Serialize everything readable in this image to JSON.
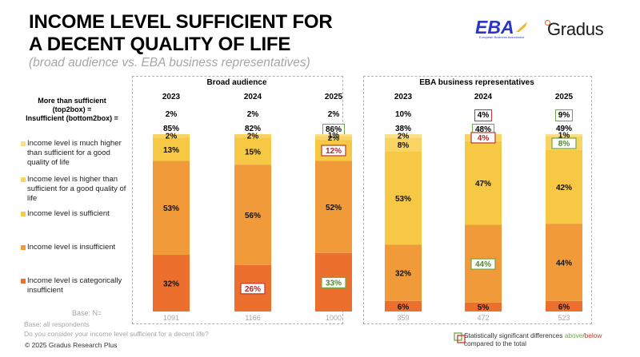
{
  "header": {
    "title_line1": "INCOME LEVEL SUFFICIENT FOR",
    "title_line2": "A DECENT QUALITY OF LIFE",
    "subtitle": "(broad audience vs. EBA business representatives)",
    "logo_eba": "EBA",
    "logo_eba_sub": "European Business Association",
    "logo_gradus": "Gradus"
  },
  "row_labels": {
    "top2box": "More than sufficient (top2box) =",
    "bottom2box": "Insufficient (bottom2box) ="
  },
  "legend": [
    {
      "label": "Income level is much higher than sufficient for a good quality of life",
      "color": "#fbe08a"
    },
    {
      "label": "Income level is higher than sufficient for a good quality of life",
      "color": "#f9d463"
    },
    {
      "label": "Income level is sufficient",
      "color": "#f6c843"
    },
    {
      "label": "Income level is insufficient",
      "color": "#f09a3a"
    },
    {
      "label": "Income level is categorically insufficient",
      "color": "#ec6f2e"
    }
  ],
  "significance_colors": {
    "above": "#70a845",
    "below": "#c0392b"
  },
  "footer": {
    "base_n_label": "Base: N=",
    "base_note": "Base: all respondents",
    "question": "Do you consider your income level sufficient for a decent life?",
    "copyright": "© 2025 Gradus Research Plus",
    "sig_text_prefix": "Statistically significant differences ",
    "sig_above": "above",
    "sig_slash": "/",
    "sig_below": "below",
    "sig_text_suffix": "compared to the total"
  },
  "chart_data": {
    "type": "bar",
    "stacked": true,
    "title": "INCOME LEVEL SUFFICIENT FOR A DECENT QUALITY OF LIFE",
    "subtitle": "(broad audience vs. EBA business representatives)",
    "series_names": [
      "Income level is much higher than sufficient for a good quality of life",
      "Income level is higher than sufficient for a good quality of life",
      "Income level is sufficient",
      "Income level is insufficient",
      "Income level is categorically insufficient"
    ],
    "panels": [
      {
        "title": "Broad audience",
        "categories": [
          "2023",
          "2024",
          "2025"
        ],
        "top2box": [
          "2%",
          "2%",
          "2%"
        ],
        "top2box_sig": [
          "",
          "",
          ""
        ],
        "bottom2box": [
          "85%",
          "82%",
          "86%"
        ],
        "bottom2box_sig": [
          "",
          "",
          "above"
        ],
        "base_n": [
          "1091",
          "1166",
          "1000"
        ],
        "values": [
          [
            0,
            2,
            13,
            53,
            32
          ],
          [
            0,
            2,
            15,
            56,
            26
          ],
          [
            1,
            2,
            12,
            52,
            33
          ]
        ],
        "labels": [
          [
            "",
            "2%",
            "13%",
            "53%",
            "32%"
          ],
          [
            "",
            "2%",
            "15%",
            "56%",
            "26%"
          ],
          [
            "1%",
            "2%",
            "12%",
            "52%",
            "33%"
          ]
        ],
        "sig": [
          [
            "",
            "",
            "",
            "",
            ""
          ],
          [
            "",
            "",
            "",
            "",
            "below"
          ],
          [
            "",
            "",
            "below",
            "",
            "above"
          ]
        ]
      },
      {
        "title": "EBA business representatives",
        "categories": [
          "2023",
          "2024",
          "2025"
        ],
        "top2box": [
          "10%",
          "4%",
          "9%"
        ],
        "top2box_sig": [
          "",
          "below",
          "above"
        ],
        "bottom2box": [
          "38%",
          "48%",
          "49%"
        ],
        "bottom2box_sig": [
          "",
          "above",
          ""
        ],
        "base_n": [
          "359",
          "472",
          "523"
        ],
        "values": [
          [
            2,
            8,
            53,
            32,
            6
          ],
          [
            0,
            4,
            47,
            44,
            5
          ],
          [
            1,
            8,
            42,
            44,
            6
          ]
        ],
        "labels": [
          [
            "2%",
            "8%",
            "53%",
            "32%",
            "6%"
          ],
          [
            "",
            "4%",
            "47%",
            "44%",
            "5%"
          ],
          [
            "1%",
            "8%",
            "42%",
            "44%",
            "6%"
          ]
        ],
        "sig": [
          [
            "",
            "",
            "",
            "",
            ""
          ],
          [
            "",
            "below",
            "",
            "above",
            ""
          ],
          [
            "",
            "above",
            "",
            "",
            ""
          ]
        ]
      }
    ],
    "ylim": [
      0,
      100
    ]
  }
}
